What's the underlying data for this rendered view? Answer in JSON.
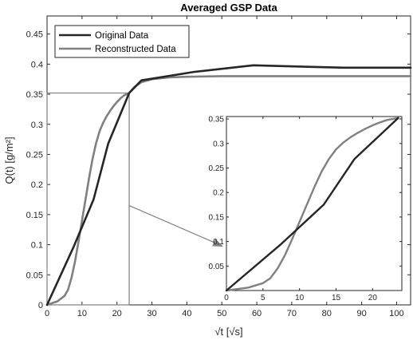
{
  "chart_data": [
    {
      "type": "line",
      "title": "Averaged GSP Data",
      "xlabel": "√t [√s]",
      "ylabel": "Q(t) [g/m²]",
      "xlim": [
        0,
        104
      ],
      "ylim": [
        0,
        0.48
      ],
      "xticks": [
        0,
        10,
        20,
        30,
        40,
        50,
        60,
        70,
        80,
        90,
        100
      ],
      "yticks": [
        0,
        0.05,
        0.1,
        0.15,
        0.2,
        0.25,
        0.3,
        0.35,
        0.4,
        0.45
      ],
      "ytick_labels": [
        "0",
        "0.05",
        "0.1",
        "0.15",
        "0.2",
        "0.25",
        "0.3",
        "0.35",
        "0.4",
        "0.45"
      ],
      "grid": false,
      "legend_position": "top-left",
      "series": [
        {
          "name": "Original Data",
          "color": "#262626",
          "x": [
            0,
            7.5,
            13.3,
            17.5,
            23.5,
            27,
            42,
            59,
            85,
            104
          ],
          "y": [
            0,
            0.095,
            0.175,
            0.268,
            0.352,
            0.373,
            0.387,
            0.398,
            0.394,
            0.394
          ]
        },
        {
          "name": "Reconstructed Data",
          "color": "#808080",
          "x": [
            0,
            3,
            5,
            6,
            7,
            8,
            9,
            10,
            11,
            12,
            13,
            14,
            15,
            16,
            17,
            18,
            19,
            20,
            21,
            22,
            23.5,
            25,
            27,
            30,
            35,
            40,
            50,
            60,
            80,
            104
          ],
          "y": [
            0,
            0.006,
            0.015,
            0.025,
            0.045,
            0.072,
            0.105,
            0.14,
            0.175,
            0.21,
            0.242,
            0.268,
            0.288,
            0.302,
            0.313,
            0.322,
            0.33,
            0.337,
            0.343,
            0.348,
            0.352,
            0.362,
            0.37,
            0.375,
            0.378,
            0.379,
            0.38,
            0.38,
            0.38,
            0.38
          ]
        }
      ],
      "zoom_region": {
        "x": [
          0,
          23.5
        ],
        "y": [
          0,
          0.352
        ]
      }
    },
    {
      "type": "line",
      "title": "",
      "xlim": [
        0,
        24
      ],
      "ylim": [
        0,
        0.355
      ],
      "xticks": [
        0,
        5,
        10,
        15,
        20
      ],
      "yticks": [
        0.05,
        0.1,
        0.15,
        0.2,
        0.25,
        0.3,
        0.35
      ],
      "ytick_labels": [
        "0.05",
        "0.1",
        "0.15",
        "0.2",
        "0.25",
        "0.3",
        "0.35"
      ],
      "grid": false,
      "series": [
        {
          "name": "Original Data",
          "color": "#262626",
          "x": [
            0,
            7.5,
            13.3,
            17.5,
            23.5
          ],
          "y": [
            0,
            0.095,
            0.175,
            0.268,
            0.352
          ]
        },
        {
          "name": "Reconstructed Data",
          "color": "#808080",
          "x": [
            0,
            3,
            5,
            6,
            7,
            8,
            9,
            10,
            11,
            12,
            13,
            14,
            15,
            16,
            17,
            18,
            19,
            20,
            21,
            22,
            23.5
          ],
          "y": [
            0,
            0.006,
            0.015,
            0.025,
            0.045,
            0.072,
            0.105,
            0.14,
            0.175,
            0.21,
            0.242,
            0.268,
            0.288,
            0.302,
            0.313,
            0.322,
            0.33,
            0.337,
            0.343,
            0.348,
            0.352
          ]
        }
      ]
    }
  ]
}
